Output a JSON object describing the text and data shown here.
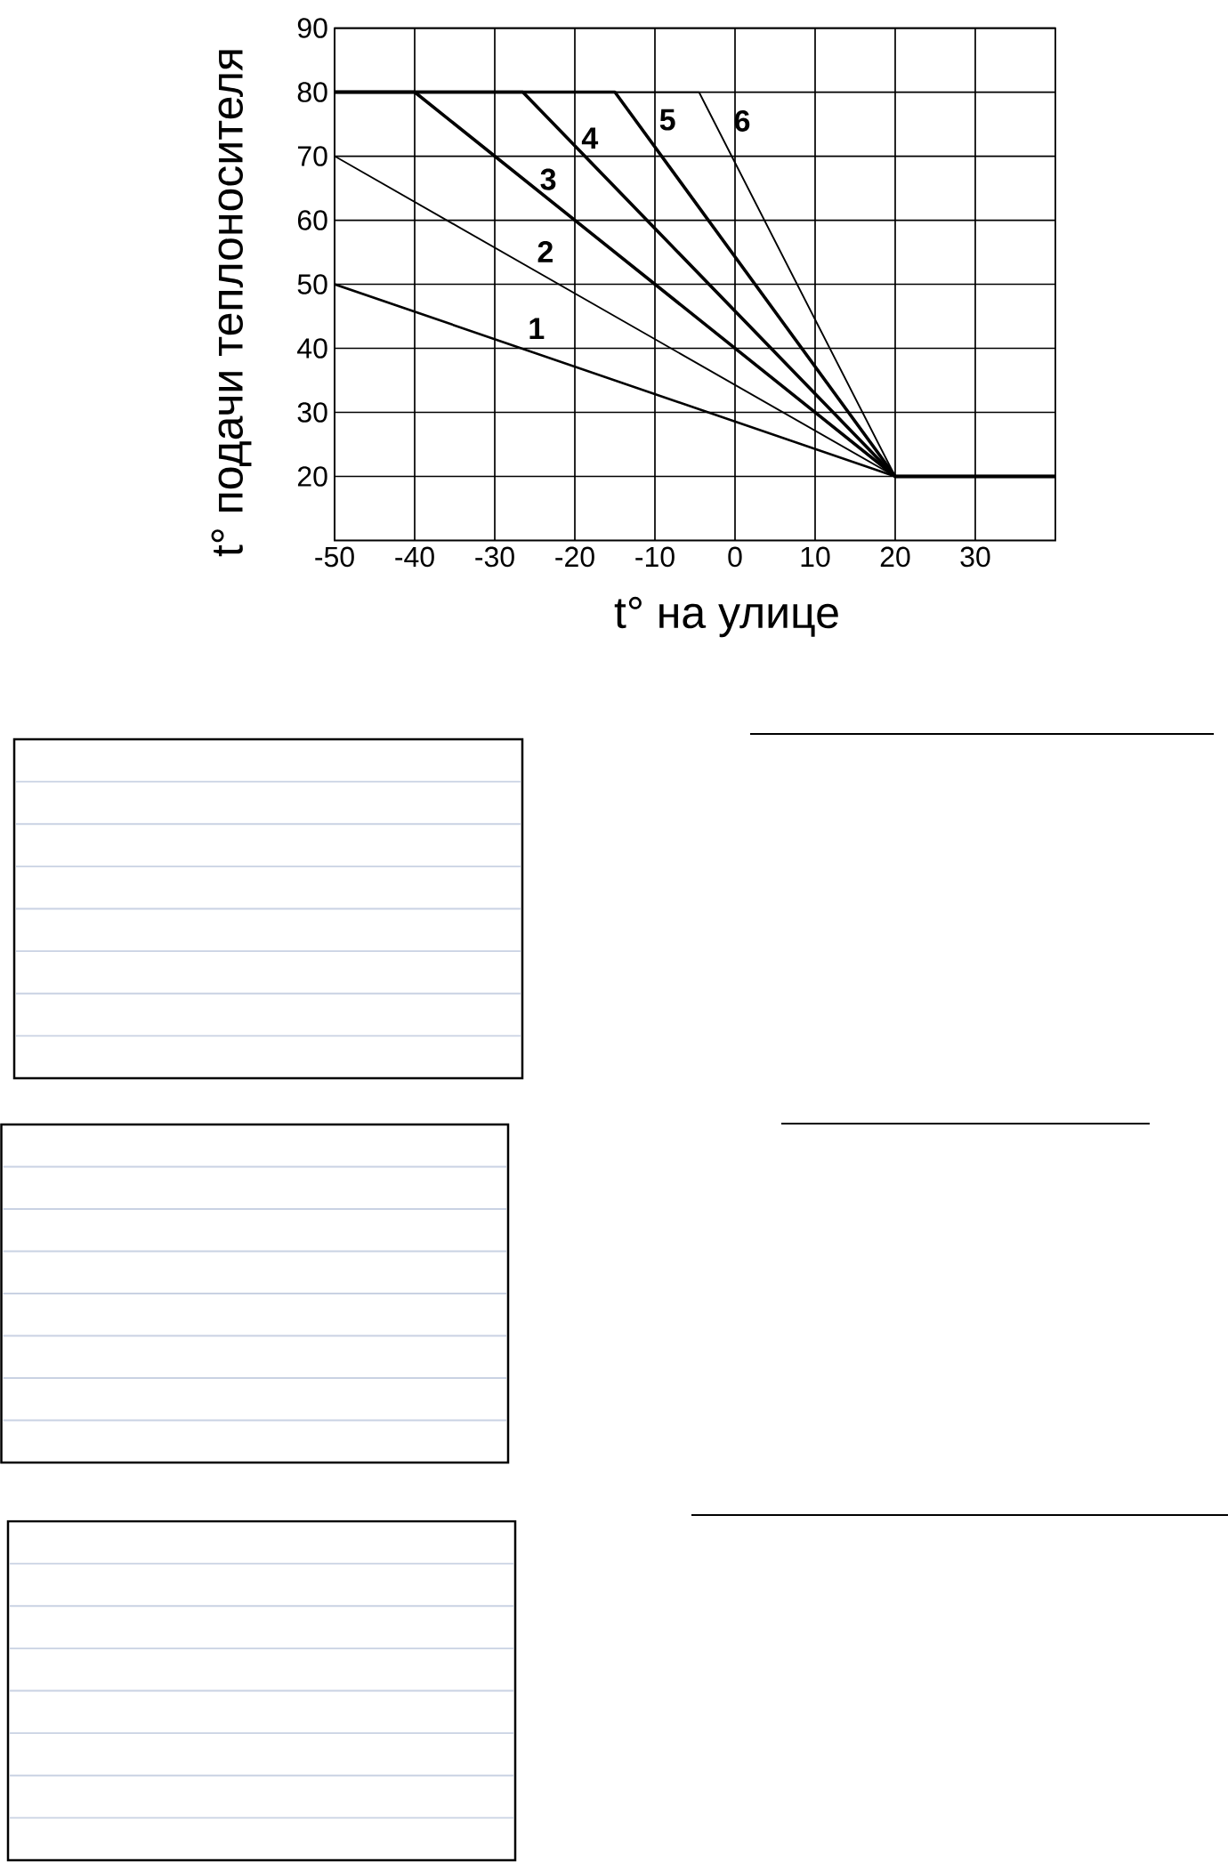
{
  "chart_data": {
    "type": "line",
    "xlabel": "t° на улице",
    "ylabel": "t° подачи теплоносителя",
    "xlim": [
      -50,
      40
    ],
    "ylim": [
      10,
      90
    ],
    "xticks": [
      -50,
      -40,
      -30,
      -20,
      -10,
      0,
      10,
      20,
      30
    ],
    "yticks": [
      20,
      30,
      40,
      50,
      60,
      70,
      80,
      90
    ],
    "grid": true,
    "line_style": "solid",
    "series": [
      {
        "name": "1",
        "color": "#000000",
        "x": [
          -50,
          20,
          40
        ],
        "values": [
          50,
          20,
          20
        ]
      },
      {
        "name": "2",
        "color": "#000000",
        "x": [
          -50,
          20,
          40
        ],
        "values": [
          70,
          20,
          20
        ]
      },
      {
        "name": "3",
        "color": "#000000",
        "x": [
          -50,
          -40,
          20,
          40
        ],
        "values": [
          80,
          80,
          20,
          20
        ]
      },
      {
        "name": "4",
        "color": "#000000",
        "x": [
          -50,
          -26.5,
          20,
          40
        ],
        "values": [
          80,
          80,
          20,
          20
        ]
      },
      {
        "name": "5",
        "color": "#000000",
        "x": [
          -50,
          -15,
          20,
          40
        ],
        "values": [
          80,
          80,
          20,
          20
        ]
      },
      {
        "name": "6",
        "color": "#000000",
        "x": [
          -50,
          -4.5,
          20,
          40
        ],
        "values": [
          80,
          80,
          20,
          20
        ]
      }
    ]
  }
}
